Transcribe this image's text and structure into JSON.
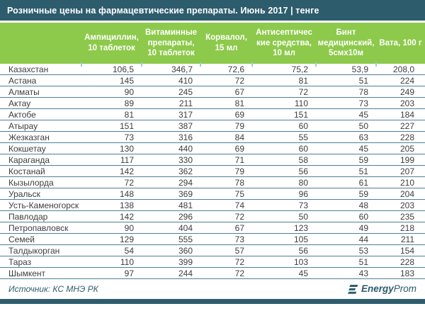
{
  "title_bar": {
    "title": "Розничные цены на фармацевтические препараты. Июнь 2017 | тенге"
  },
  "table": {
    "columns": [
      "",
      "Ампициллин,\n10 таблеток",
      "Витаминные\nпрепараты,\n10 таблеток",
      "Корвалол,\n15 мл",
      "Антисептичес\nкие средства,\n10 мл",
      "Бинт\nмедицинский,\n5смх10м",
      "Вата, 100 г"
    ],
    "rows": [
      {
        "region": "Казахстан",
        "values": [
          "106,5",
          "346,7",
          "72,6",
          "75,2",
          "53,9",
          "208,0"
        ]
      },
      {
        "region": "Астана",
        "values": [
          "145",
          "410",
          "72",
          "81",
          "51",
          "224"
        ]
      },
      {
        "region": "Алматы",
        "values": [
          "90",
          "245",
          "67",
          "72",
          "78",
          "249"
        ]
      },
      {
        "region": "Актау",
        "values": [
          "89",
          "211",
          "81",
          "110",
          "73",
          "203"
        ]
      },
      {
        "region": "Актобе",
        "values": [
          "81",
          "317",
          "69",
          "151",
          "45",
          "184"
        ]
      },
      {
        "region": "Атырау",
        "values": [
          "151",
          "387",
          "79",
          "60",
          "50",
          "227"
        ]
      },
      {
        "region": "Жезказган",
        "values": [
          "73",
          "316",
          "84",
          "55",
          "63",
          "228"
        ]
      },
      {
        "region": "Кокшетау",
        "values": [
          "130",
          "440",
          "69",
          "60",
          "45",
          "205"
        ]
      },
      {
        "region": "Караганда",
        "values": [
          "117",
          "330",
          "71",
          "58",
          "59",
          "199"
        ]
      },
      {
        "region": "Костанай",
        "values": [
          "142",
          "362",
          "79",
          "56",
          "51",
          "207"
        ]
      },
      {
        "region": "Кызылорда",
        "values": [
          "72",
          "294",
          "78",
          "80",
          "61",
          "210"
        ]
      },
      {
        "region": "Уральск",
        "values": [
          "148",
          "369",
          "75",
          "96",
          "59",
          "204"
        ]
      },
      {
        "region": "Усть-Каменогорск",
        "values": [
          "138",
          "481",
          "74",
          "73",
          "48",
          "203"
        ]
      },
      {
        "region": "Павлодар",
        "values": [
          "142",
          "296",
          "72",
          "50",
          "60",
          "235"
        ]
      },
      {
        "region": "Петропавловск",
        "values": [
          "90",
          "404",
          "67",
          "123",
          "49",
          "218"
        ]
      },
      {
        "region": "Семей",
        "values": [
          "129",
          "555",
          "73",
          "105",
          "44",
          "211"
        ]
      },
      {
        "region": "Талдыкорган",
        "values": [
          "54",
          "360",
          "57",
          "56",
          "53",
          "154"
        ]
      },
      {
        "region": "Тараз",
        "values": [
          "110",
          "399",
          "72",
          "103",
          "51",
          "228"
        ]
      },
      {
        "region": "Шымкент",
        "values": [
          "97",
          "244",
          "72",
          "45",
          "43",
          "183"
        ]
      }
    ]
  },
  "footer": {
    "source": "Источник: КС МНЭ РК",
    "brand": {
      "bold": "Energy",
      "light": "Prom"
    }
  },
  "colors": {
    "title_bar_bg": "#2d5c6d",
    "header_green": "#8dc94b",
    "row_separator": "#4d7f99",
    "body_text": "#3d3d3d",
    "footer_teal": "#2d5c6d"
  },
  "chart_data": {
    "type": "table",
    "title": "Розничные цены на фармацевтические препараты. Июнь 2017 | тенге",
    "unit": "тенге",
    "categories": [
      "Казахстан",
      "Астана",
      "Алматы",
      "Актау",
      "Актобе",
      "Атырау",
      "Жезказган",
      "Кокшетау",
      "Караганда",
      "Костанай",
      "Кызылорда",
      "Уральск",
      "Усть-Каменогорск",
      "Павлодар",
      "Петропавловск",
      "Семей",
      "Талдыкорган",
      "Тараз",
      "Шымкент"
    ],
    "series": [
      {
        "name": "Ампициллин, 10 таблеток",
        "values": [
          106.5,
          145,
          90,
          89,
          81,
          151,
          73,
          130,
          117,
          142,
          72,
          148,
          138,
          142,
          90,
          129,
          54,
          110,
          97
        ]
      },
      {
        "name": "Витаминные препараты, 10 таблеток",
        "values": [
          346.7,
          410,
          245,
          211,
          317,
          387,
          316,
          440,
          330,
          362,
          294,
          369,
          481,
          296,
          404,
          555,
          360,
          399,
          244
        ]
      },
      {
        "name": "Корвалол, 15 мл",
        "values": [
          72.6,
          72,
          67,
          81,
          69,
          79,
          84,
          69,
          71,
          79,
          78,
          75,
          74,
          72,
          67,
          73,
          57,
          72,
          72
        ]
      },
      {
        "name": "Антисептические средства, 10 мл",
        "values": [
          75.2,
          81,
          72,
          110,
          151,
          60,
          55,
          60,
          58,
          56,
          80,
          96,
          73,
          50,
          123,
          105,
          56,
          103,
          45
        ]
      },
      {
        "name": "Бинт медицинский, 5смх10м",
        "values": [
          53.9,
          51,
          78,
          73,
          45,
          50,
          63,
          45,
          59,
          51,
          61,
          59,
          48,
          60,
          49,
          44,
          53,
          51,
          43
        ]
      },
      {
        "name": "Вата, 100 г",
        "values": [
          208.0,
          224,
          249,
          203,
          184,
          227,
          228,
          205,
          199,
          207,
          210,
          204,
          203,
          235,
          218,
          211,
          154,
          228,
          183
        ]
      }
    ]
  }
}
